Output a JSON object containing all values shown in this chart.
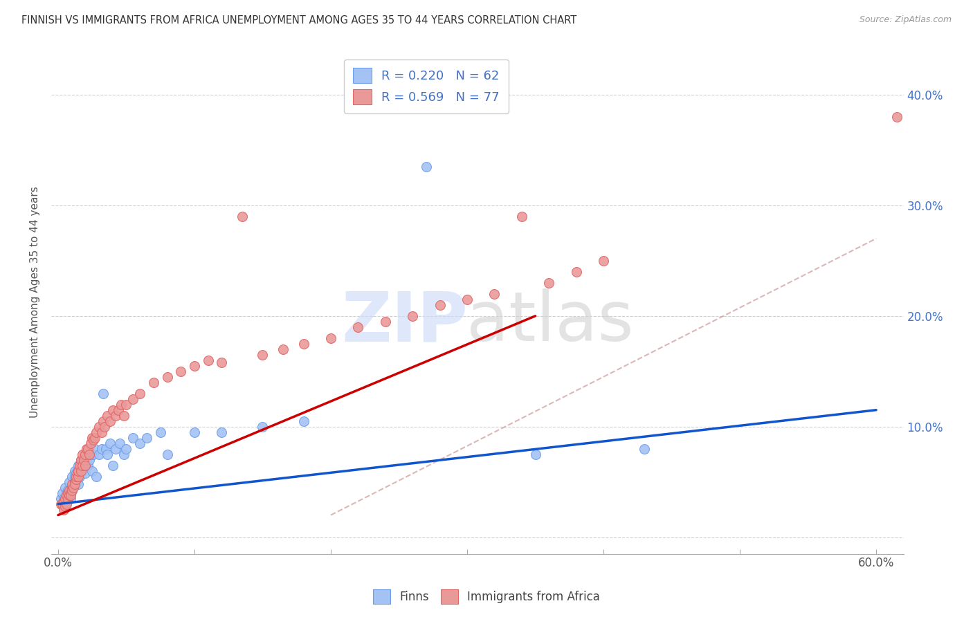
{
  "title": "FINNISH VS IMMIGRANTS FROM AFRICA UNEMPLOYMENT AMONG AGES 35 TO 44 YEARS CORRELATION CHART",
  "source": "Source: ZipAtlas.com",
  "ylabel": "Unemployment Among Ages 35 to 44 years",
  "x_tick_vals": [
    0.0,
    0.1,
    0.2,
    0.3,
    0.4,
    0.5,
    0.6
  ],
  "xlim": [
    -0.005,
    0.62
  ],
  "ylim": [
    -0.015,
    0.44
  ],
  "y_tick_vals": [
    0.0,
    0.1,
    0.2,
    0.3,
    0.4
  ],
  "right_y_labels": [
    "",
    "10.0%",
    "20.0%",
    "30.0%",
    "40.0%"
  ],
  "legend_label1": "Finns",
  "legend_label2": "Immigrants from Africa",
  "R1": 0.22,
  "N1": 62,
  "R2": 0.569,
  "N2": 77,
  "color_finns_fill": "#a4c2f4",
  "color_finns_edge": "#6d9eeb",
  "color_africa_fill": "#ea9999",
  "color_africa_edge": "#e06666",
  "color_trend_finns": "#1155cc",
  "color_trend_africa": "#cc0000",
  "color_dashed_ref": "#cc9999",
  "watermark_zip_color": "#c9daf8",
  "watermark_atlas_color": "#cccccc",
  "finns_x": [
    0.002,
    0.003,
    0.004,
    0.005,
    0.005,
    0.006,
    0.007,
    0.007,
    0.008,
    0.008,
    0.009,
    0.01,
    0.01,
    0.01,
    0.011,
    0.012,
    0.012,
    0.013,
    0.013,
    0.014,
    0.015,
    0.015,
    0.016,
    0.016,
    0.017,
    0.018,
    0.018,
    0.019,
    0.02,
    0.02,
    0.021,
    0.022,
    0.022,
    0.023,
    0.024,
    0.025,
    0.026,
    0.027,
    0.028,
    0.03,
    0.032,
    0.033,
    0.035,
    0.036,
    0.038,
    0.04,
    0.042,
    0.045,
    0.048,
    0.05,
    0.055,
    0.06,
    0.065,
    0.075,
    0.08,
    0.1,
    0.12,
    0.15,
    0.18,
    0.27,
    0.35,
    0.43
  ],
  "finns_y": [
    0.035,
    0.04,
    0.035,
    0.045,
    0.035,
    0.04,
    0.042,
    0.038,
    0.05,
    0.04,
    0.035,
    0.055,
    0.045,
    0.042,
    0.048,
    0.055,
    0.06,
    0.05,
    0.058,
    0.06,
    0.065,
    0.048,
    0.065,
    0.055,
    0.07,
    0.068,
    0.06,
    0.07,
    0.058,
    0.065,
    0.07,
    0.075,
    0.065,
    0.07,
    0.075,
    0.06,
    0.075,
    0.08,
    0.055,
    0.075,
    0.08,
    0.13,
    0.08,
    0.075,
    0.085,
    0.065,
    0.08,
    0.085,
    0.075,
    0.08,
    0.09,
    0.085,
    0.09,
    0.095,
    0.075,
    0.095,
    0.095,
    0.1,
    0.105,
    0.335,
    0.075,
    0.08
  ],
  "africa_x": [
    0.002,
    0.003,
    0.004,
    0.004,
    0.005,
    0.005,
    0.006,
    0.006,
    0.007,
    0.007,
    0.008,
    0.008,
    0.009,
    0.009,
    0.01,
    0.01,
    0.01,
    0.011,
    0.012,
    0.012,
    0.013,
    0.013,
    0.014,
    0.015,
    0.015,
    0.016,
    0.017,
    0.017,
    0.018,
    0.018,
    0.019,
    0.02,
    0.02,
    0.021,
    0.022,
    0.023,
    0.024,
    0.025,
    0.026,
    0.027,
    0.028,
    0.03,
    0.032,
    0.033,
    0.034,
    0.036,
    0.038,
    0.04,
    0.042,
    0.044,
    0.046,
    0.048,
    0.05,
    0.055,
    0.06,
    0.07,
    0.08,
    0.09,
    0.1,
    0.11,
    0.12,
    0.135,
    0.15,
    0.165,
    0.18,
    0.2,
    0.22,
    0.24,
    0.26,
    0.28,
    0.3,
    0.32,
    0.34,
    0.36,
    0.38,
    0.4,
    0.615
  ],
  "africa_y": [
    0.03,
    0.03,
    0.025,
    0.032,
    0.028,
    0.035,
    0.03,
    0.038,
    0.035,
    0.04,
    0.038,
    0.042,
    0.04,
    0.038,
    0.045,
    0.042,
    0.048,
    0.045,
    0.05,
    0.048,
    0.052,
    0.055,
    0.058,
    0.055,
    0.06,
    0.065,
    0.06,
    0.07,
    0.065,
    0.075,
    0.07,
    0.075,
    0.065,
    0.08,
    0.08,
    0.075,
    0.085,
    0.09,
    0.088,
    0.09,
    0.095,
    0.1,
    0.095,
    0.105,
    0.1,
    0.11,
    0.105,
    0.115,
    0.11,
    0.115,
    0.12,
    0.11,
    0.12,
    0.125,
    0.13,
    0.14,
    0.145,
    0.15,
    0.155,
    0.16,
    0.158,
    0.29,
    0.165,
    0.17,
    0.175,
    0.18,
    0.19,
    0.195,
    0.2,
    0.21,
    0.215,
    0.22,
    0.29,
    0.23,
    0.24,
    0.25,
    0.38
  ]
}
